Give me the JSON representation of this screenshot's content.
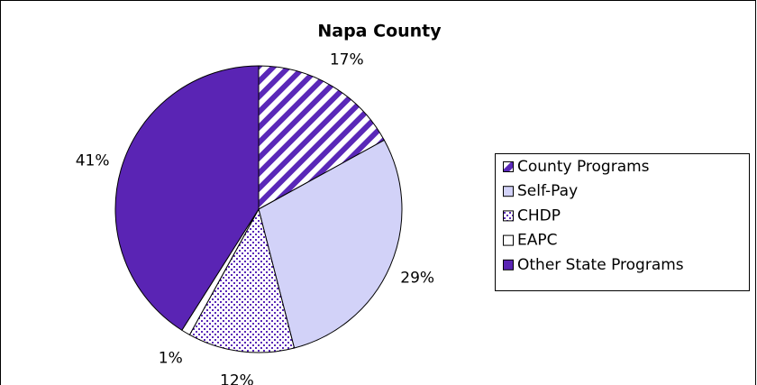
{
  "chart_data": {
    "type": "pie",
    "title": "Napa County",
    "categories": [
      "County Programs",
      "Self-Pay",
      "CHDP",
      "EAPC",
      "Other State Programs"
    ],
    "values": [
      17,
      29,
      12,
      1,
      41
    ],
    "value_labels": [
      "17%",
      "29%",
      "12%",
      "1%",
      "41%"
    ],
    "colors": [
      "#5a28b8",
      "#d2d2f8",
      "#5a28b8",
      "#ffffff",
      "#5a24b4"
    ],
    "patterns": [
      "stripes",
      "solid",
      "dots",
      "solid",
      "solid"
    ],
    "legend": "right"
  }
}
